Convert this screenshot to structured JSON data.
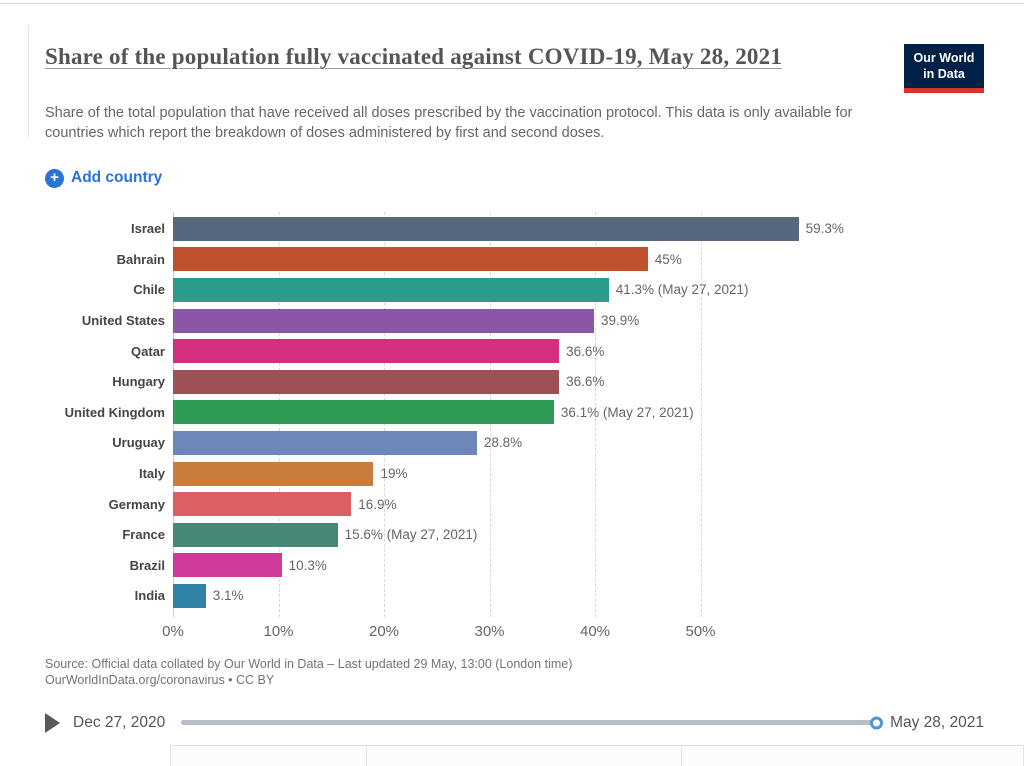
{
  "header": {
    "title": "Share of the population fully vaccinated against COVID-19, May 28, 2021",
    "subtitle": "Share of the total population that have received all doses prescribed by the vaccination protocol. This data is only available for countries which report the breakdown of doses administered by first and second doses.",
    "logo": {
      "line1": "Our World",
      "line2": "in Data",
      "bg_color": "#002147",
      "accent_color": "#d8352a"
    }
  },
  "controls": {
    "add_country_label": "Add country",
    "accent_blue": "#2874d9"
  },
  "chart_data": {
    "type": "bar",
    "orientation": "horizontal",
    "title": "Share of the population fully vaccinated against COVID-19, May 28, 2021",
    "xlabel": "",
    "ylabel": "",
    "xlim": [
      0,
      62
    ],
    "grid": "dashed-vertical",
    "categories": [
      "Israel",
      "Bahrain",
      "Chile",
      "United States",
      "Qatar",
      "Hungary",
      "United Kingdom",
      "Uruguay",
      "Italy",
      "Germany",
      "France",
      "Brazil",
      "India"
    ],
    "values": [
      59.3,
      45,
      41.3,
      39.9,
      36.6,
      36.6,
      36.1,
      28.8,
      19,
      16.9,
      15.6,
      10.3,
      3.1
    ],
    "value_labels": [
      "59.3%",
      "45%",
      "41.3% (May 27, 2021)",
      "39.9%",
      "36.6%",
      "36.6%",
      "36.1% (May 27, 2021)",
      "28.8%",
      "19%",
      "16.9%",
      "15.6% (May 27, 2021)",
      "10.3%",
      "3.1%"
    ],
    "bar_colors": [
      "#57687c",
      "#c0512f",
      "#2a9c8d",
      "#8b56a5",
      "#d42e7e",
      "#9f5055",
      "#2f9a54",
      "#6b87b9",
      "#c67d3d",
      "#dc5f64",
      "#488879",
      "#ce3b9d",
      "#3183a5"
    ],
    "x_tick_labels": [
      "0%",
      "10%",
      "20%",
      "30%",
      "40%",
      "50%"
    ],
    "x_tick_values": [
      0,
      10,
      20,
      30,
      40,
      50
    ]
  },
  "footer": {
    "source_line1": "Source: Official data collated by Our World in Data – Last updated 29 May, 13:00 (London time)",
    "source_line2": "OurWorldInData.org/coronavirus • CC BY"
  },
  "timeline": {
    "start_date": "Dec 27, 2020",
    "end_date": "May 28, 2021",
    "handle_position_pct": 100
  }
}
